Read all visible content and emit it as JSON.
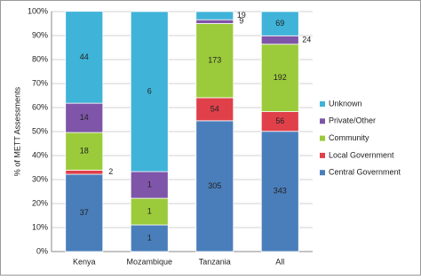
{
  "chart_data": {
    "type": "stacked_bar_100",
    "y_label": "% of METT Assessments",
    "categories": [
      "Kenya",
      "Mozambique",
      "Tanzania",
      "All"
    ],
    "series": [
      {
        "name": "Central Government",
        "color": "#4a7ebb",
        "values": [
          32.2,
          11.1,
          54.5,
          50.1
        ],
        "counts": [
          37,
          1,
          305,
          343
        ]
      },
      {
        "name": "Local Government",
        "color": "#e0404a",
        "values": [
          1.7,
          0,
          9.6,
          8.2
        ],
        "counts": [
          2,
          null,
          54,
          56
        ]
      },
      {
        "name": "Community",
        "color": "#9bcb3b",
        "values": [
          15.7,
          11.1,
          30.9,
          28.1
        ],
        "counts": [
          18,
          1,
          173,
          192
        ]
      },
      {
        "name": "Private/Other",
        "color": "#7e55a8",
        "values": [
          12.2,
          11.1,
          1.6,
          3.5
        ],
        "counts": [
          14,
          1,
          9,
          24
        ]
      },
      {
        "name": "Unknown",
        "color": "#3fb3d8",
        "values": [
          38.3,
          66.7,
          3.4,
          10.1
        ],
        "counts": [
          44,
          6,
          19,
          69
        ]
      }
    ],
    "ylim": [
      0,
      100
    ],
    "yticks": [
      {
        "value": 0,
        "label": "0%"
      },
      {
        "value": 10,
        "label": "10%"
      },
      {
        "value": 20,
        "label": "20%"
      },
      {
        "value": 30,
        "label": "30%"
      },
      {
        "value": 40,
        "label": "40%"
      },
      {
        "value": 50,
        "label": "50%"
      },
      {
        "value": 60,
        "label": "60%"
      },
      {
        "value": 70,
        "label": "70%"
      },
      {
        "value": 80,
        "label": "80%"
      },
      {
        "value": 90,
        "label": "90%"
      },
      {
        "value": 100,
        "label": "100%"
      }
    ],
    "grid": true,
    "legend": "right"
  }
}
